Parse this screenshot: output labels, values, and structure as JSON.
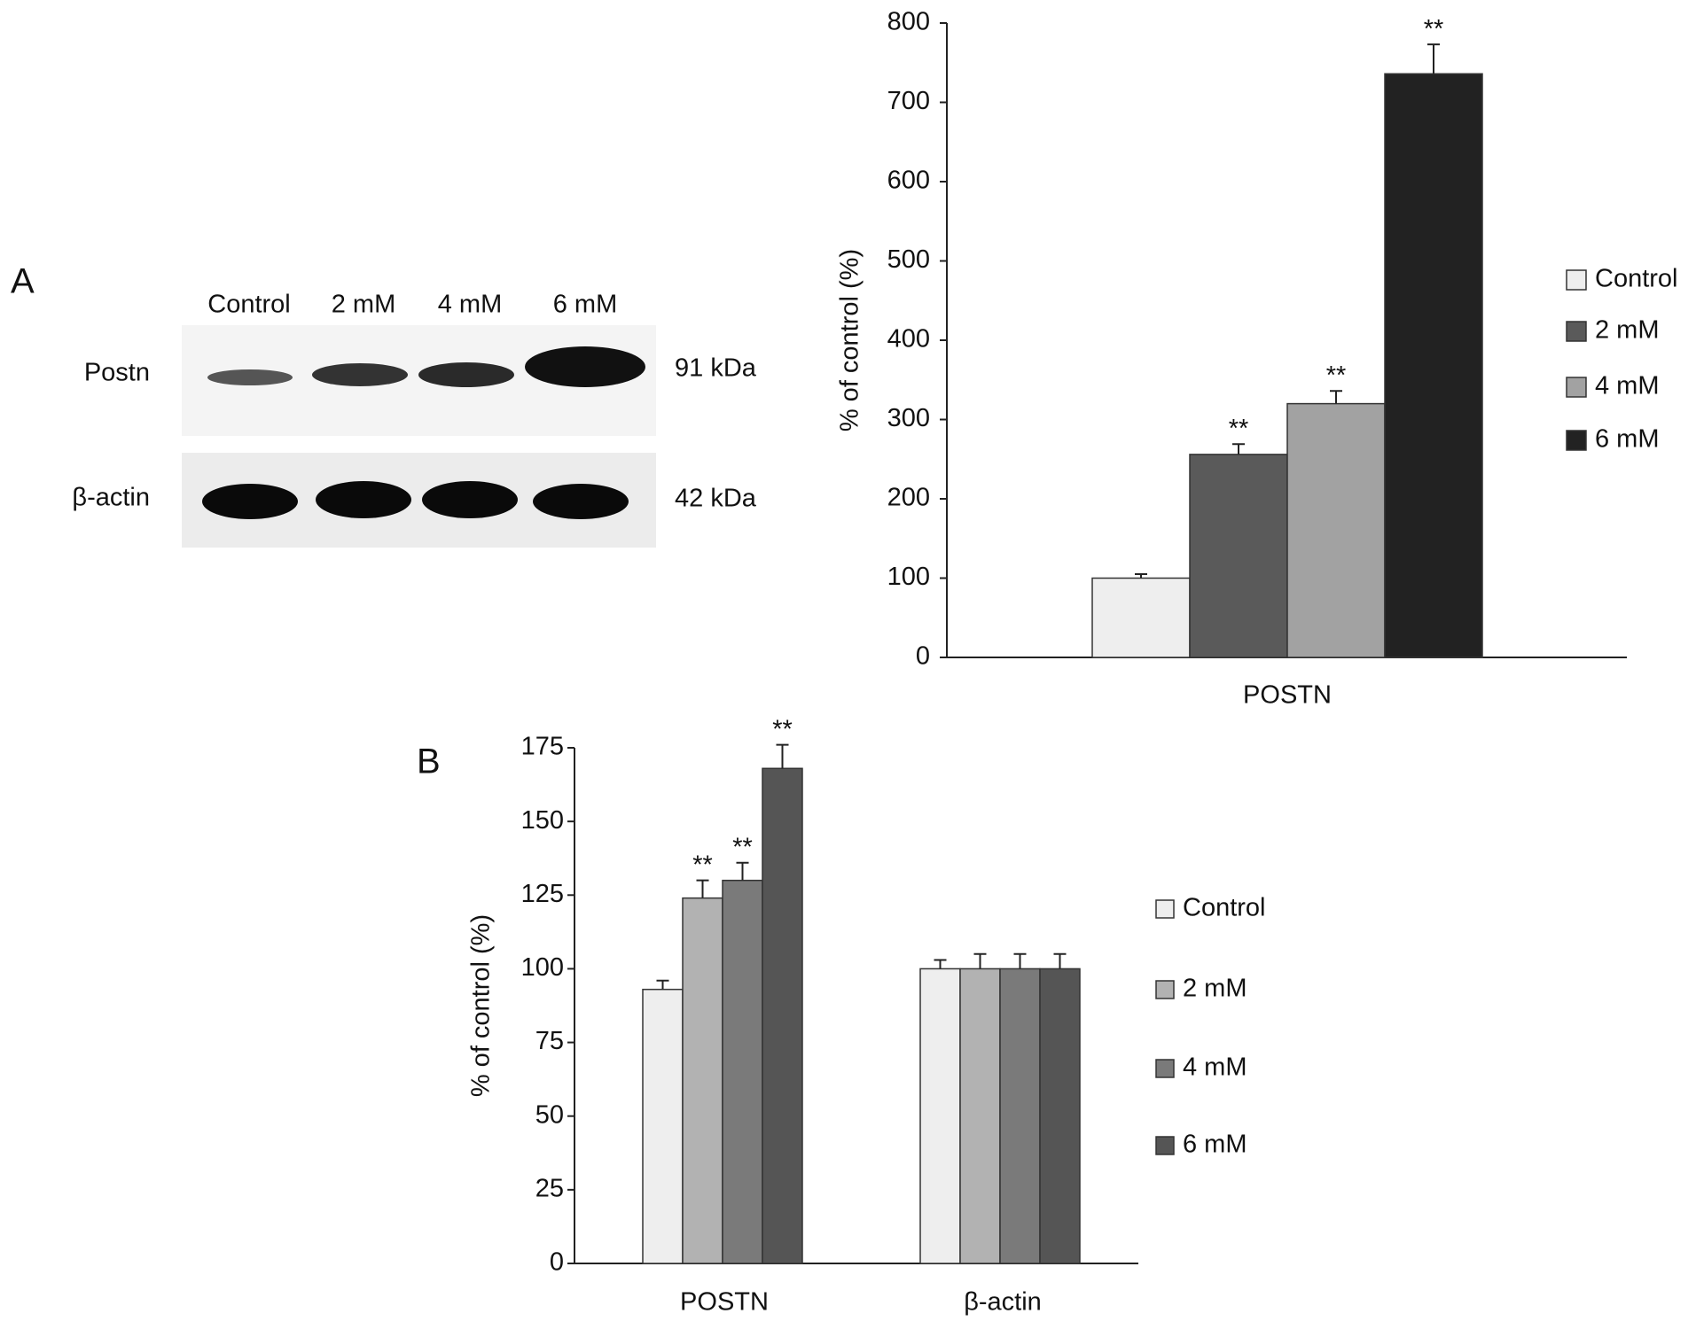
{
  "panels": [
    "A",
    "B"
  ],
  "blot": {
    "lanes": [
      "Control",
      "2 mM",
      "4 mM",
      "6 mM"
    ],
    "rows": [
      {
        "label": "Postn",
        "size": "91 kDa"
      },
      {
        "label": "β-actin",
        "size": "42 kDa"
      }
    ]
  },
  "chart_data": [
    {
      "type": "bar",
      "y_label": "% of control (%)",
      "categories": [
        "POSTN"
      ],
      "ylim": [
        0,
        800
      ],
      "yticks": [
        0,
        100,
        200,
        300,
        400,
        500,
        600,
        700,
        800
      ],
      "series": [
        {
          "name": "Control",
          "color": "#eeeeee",
          "values": [
            100
          ],
          "errors": [
            5
          ],
          "annotations": [
            null
          ]
        },
        {
          "name": "2 mM",
          "color": "#5a5a5a",
          "values": [
            256
          ],
          "errors": [
            13
          ],
          "annotations": [
            "**"
          ]
        },
        {
          "name": "4 mM",
          "color": "#a2a2a2",
          "values": [
            320
          ],
          "errors": [
            16
          ],
          "annotations": [
            "**"
          ]
        },
        {
          "name": "6 mM",
          "color": "#222222",
          "values": [
            736
          ],
          "errors": [
            37
          ],
          "annotations": [
            "**"
          ]
        }
      ]
    },
    {
      "type": "bar",
      "y_label": "% of control (%)",
      "categories": [
        "POSTN",
        "β-actin"
      ],
      "ylim": [
        0,
        175
      ],
      "yticks": [
        0,
        25,
        50,
        75,
        100,
        125,
        150,
        175
      ],
      "series": [
        {
          "name": "Control",
          "color": "#eeeeee",
          "values": [
            93,
            100
          ],
          "errors": [
            3,
            3
          ],
          "annotations": [
            null,
            null
          ]
        },
        {
          "name": "2 mM",
          "color": "#b2b2b2",
          "values": [
            124,
            100
          ],
          "errors": [
            6,
            5
          ],
          "annotations": [
            "**",
            null
          ]
        },
        {
          "name": "4 mM",
          "color": "#7a7a7a",
          "values": [
            130,
            100
          ],
          "errors": [
            6,
            5
          ],
          "annotations": [
            "**",
            null
          ]
        },
        {
          "name": "6 mM",
          "color": "#555555",
          "values": [
            168,
            100
          ],
          "errors": [
            8,
            5
          ],
          "annotations": [
            "**",
            null
          ]
        }
      ]
    }
  ]
}
